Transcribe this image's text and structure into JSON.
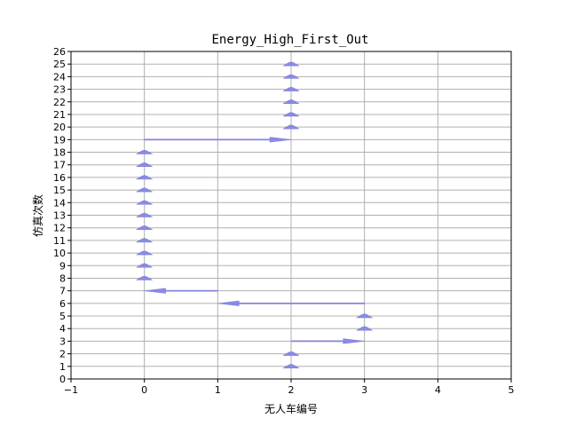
{
  "chart_data": {
    "type": "quiver",
    "title": "Energy_High_First_Out",
    "xlabel": "无人车编号",
    "ylabel": "仿真次数",
    "xlim": [
      -1,
      5
    ],
    "ylim": [
      0,
      26
    ],
    "xticks": [
      -1,
      0,
      1,
      2,
      3,
      4,
      5
    ],
    "yticks": [
      0,
      1,
      2,
      3,
      4,
      5,
      6,
      7,
      8,
      9,
      10,
      11,
      12,
      13,
      14,
      15,
      16,
      17,
      18,
      19,
      20,
      21,
      22,
      23,
      24,
      25,
      26
    ],
    "grid": true,
    "color": "#8a8ae6",
    "arrows": [
      {
        "y": 1,
        "from": 2,
        "to": 2
      },
      {
        "y": 2,
        "from": 2,
        "to": 2
      },
      {
        "y": 3,
        "from": 2,
        "to": 3
      },
      {
        "y": 4,
        "from": 3,
        "to": 3
      },
      {
        "y": 5,
        "from": 3,
        "to": 3
      },
      {
        "y": 6,
        "from": 3,
        "to": 1
      },
      {
        "y": 7,
        "from": 1,
        "to": 0
      },
      {
        "y": 8,
        "from": 0,
        "to": 0
      },
      {
        "y": 9,
        "from": 0,
        "to": 0
      },
      {
        "y": 10,
        "from": 0,
        "to": 0
      },
      {
        "y": 11,
        "from": 0,
        "to": 0
      },
      {
        "y": 12,
        "from": 0,
        "to": 0
      },
      {
        "y": 13,
        "from": 0,
        "to": 0
      },
      {
        "y": 14,
        "from": 0,
        "to": 0
      },
      {
        "y": 15,
        "from": 0,
        "to": 0
      },
      {
        "y": 16,
        "from": 0,
        "to": 0
      },
      {
        "y": 17,
        "from": 0,
        "to": 0
      },
      {
        "y": 18,
        "from": 0,
        "to": 0
      },
      {
        "y": 19,
        "from": 0,
        "to": 2
      },
      {
        "y": 20,
        "from": 2,
        "to": 2
      },
      {
        "y": 21,
        "from": 2,
        "to": 2
      },
      {
        "y": 22,
        "from": 2,
        "to": 2
      },
      {
        "y": 23,
        "from": 2,
        "to": 2
      },
      {
        "y": 24,
        "from": 2,
        "to": 2
      },
      {
        "y": 25,
        "from": 2,
        "to": 2
      }
    ]
  }
}
